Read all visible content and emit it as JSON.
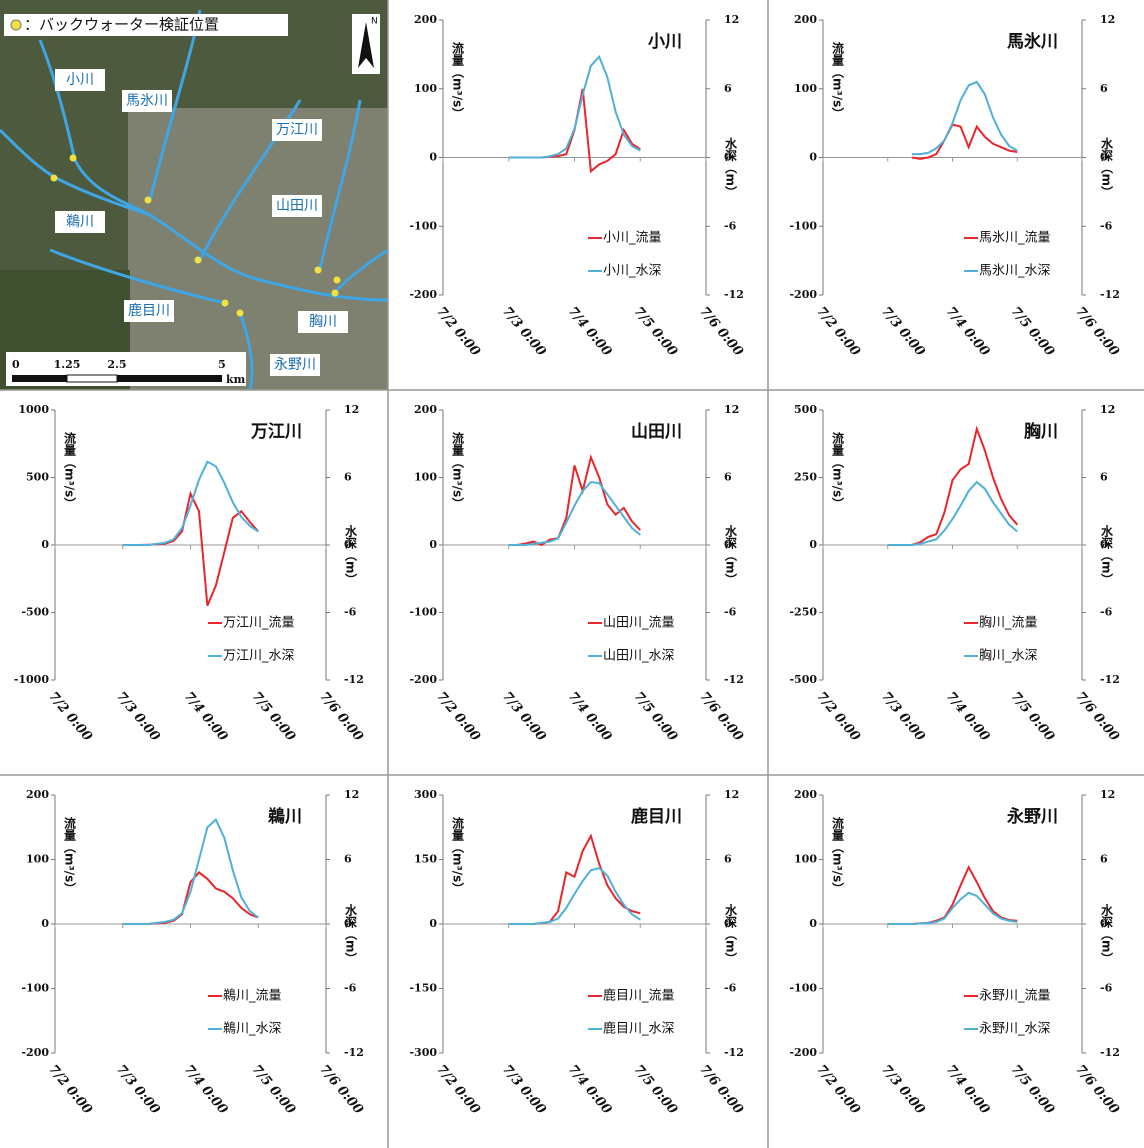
{
  "map": {
    "legend": "：バックウォーター検証位置",
    "north": "N",
    "labels": [
      "小川",
      "馬氷川",
      "万江川",
      "山田川",
      "鵜川",
      "鹿目川",
      "胸川",
      "永野川"
    ],
    "scale_ticks": [
      "0",
      "1.25",
      "2.5",
      "5"
    ],
    "scale_unit": "km"
  },
  "chart_data": [
    {
      "type": "line",
      "title": "小川",
      "ylabel": "流量（m³/s）",
      "y2label": "水深（m）",
      "legend": "lower right",
      "xlim": [
        "7/2 0:00",
        "7/6 0:00"
      ],
      "xticks": [
        "7/2 0:00",
        "7/3 0:00",
        "7/4 0:00",
        "7/5 0:00",
        "7/6 0:00"
      ],
      "ylim": [
        -200,
        200
      ],
      "yticks": [
        -200,
        -100,
        0,
        100,
        200
      ],
      "y2lim": [
        -12,
        12
      ],
      "y2ticks": [
        -12,
        -6,
        0,
        6,
        12
      ],
      "x": [
        "7/3 0:00",
        "7/3 3:00",
        "7/3 6:00",
        "7/3 9:00",
        "7/3 12:00",
        "7/3 15:00",
        "7/3 18:00",
        "7/3 21:00",
        "7/4 0:00",
        "7/4 3:00",
        "7/4 6:00",
        "7/4 9:00",
        "7/4 12:00",
        "7/4 15:00",
        "7/4 18:00",
        "7/4 21:00",
        "7/5 0:00"
      ],
      "series": [
        {
          "name": "小川_流量",
          "color": "#e8262b",
          "values": [
            0,
            0,
            0,
            0,
            0,
            1,
            2,
            5,
            40,
            100,
            -20,
            -10,
            -5,
            5,
            40,
            20,
            12
          ]
        },
        {
          "name": "小川_水深",
          "color": "#4fb0d8",
          "axis": "y2",
          "values": [
            0,
            0,
            0,
            0,
            0,
            0.1,
            0.3,
            0.8,
            2.5,
            5.5,
            8,
            8.8,
            7,
            4,
            2,
            1,
            0.6
          ]
        }
      ]
    },
    {
      "type": "line",
      "title": "馬氷川",
      "ylabel": "流量（m³/s）",
      "y2label": "水深（m）",
      "legend": "lower right",
      "xlim": [
        "7/2 0:00",
        "7/6 0:00"
      ],
      "xticks": [
        "7/2 0:00",
        "7/3 0:00",
        "7/4 0:00",
        "7/5 0:00",
        "7/6 0:00"
      ],
      "ylim": [
        -200,
        200
      ],
      "yticks": [
        -200,
        -100,
        0,
        100,
        200
      ],
      "y2lim": [
        -12,
        12
      ],
      "y2ticks": [
        -12,
        -6,
        0,
        6,
        12
      ],
      "x": [
        "7/3 0:00",
        "7/3 3:00",
        "7/3 6:00",
        "7/3 9:00",
        "7/3 12:00",
        "7/3 15:00",
        "7/3 18:00",
        "7/3 21:00",
        "7/4 0:00",
        "7/4 3:00",
        "7/4 6:00",
        "7/4 9:00",
        "7/4 12:00",
        "7/4 15:00",
        "7/4 18:00",
        "7/4 21:00",
        "7/5 0:00"
      ],
      "series": [
        {
          "name": "馬氷川_流量",
          "color": "#e8262b",
          "values": [
            null,
            null,
            null,
            0,
            -2,
            0,
            5,
            25,
            48,
            45,
            15,
            45,
            30,
            20,
            15,
            10,
            8
          ]
        },
        {
          "name": "馬氷川_水深",
          "color": "#4fb0d8",
          "axis": "y2",
          "values": [
            null,
            null,
            null,
            0.3,
            0.3,
            0.4,
            0.8,
            1.5,
            3,
            5,
            6.3,
            6.6,
            5.5,
            3.5,
            2,
            1,
            0.6
          ]
        }
      ]
    },
    {
      "type": "line",
      "title": "万江川",
      "ylabel": "流量（m³/s）",
      "y2label": "水深（m）",
      "legend": "lower right",
      "xlim": [
        "7/2 0:00",
        "7/6 0:00"
      ],
      "xticks": [
        "7/2 0:00",
        "7/3 0:00",
        "7/4 0:00",
        "7/5 0:00",
        "7/6 0:00"
      ],
      "ylim": [
        -1000,
        1000
      ],
      "yticks": [
        -1000,
        -500,
        0,
        500,
        1000
      ],
      "y2lim": [
        -12,
        12
      ],
      "y2ticks": [
        -12,
        -6,
        0,
        6,
        12
      ],
      "x": [
        "7/3 0:00",
        "7/3 3:00",
        "7/3 6:00",
        "7/3 9:00",
        "7/3 12:00",
        "7/3 15:00",
        "7/3 18:00",
        "7/3 21:00",
        "7/4 0:00",
        "7/4 3:00",
        "7/4 6:00",
        "7/4 9:00",
        "7/4 12:00",
        "7/4 15:00",
        "7/4 18:00",
        "7/4 21:00",
        "7/5 0:00"
      ],
      "series": [
        {
          "name": "万江川_流量",
          "color": "#e8262b",
          "values": [
            0,
            0,
            0,
            2,
            5,
            10,
            30,
            100,
            380,
            250,
            -450,
            -300,
            -50,
            200,
            250,
            170,
            100
          ]
        },
        {
          "name": "万江川_水深",
          "color": "#4fb0d8",
          "axis": "y2",
          "values": [
            0,
            0,
            0,
            0,
            0.1,
            0.2,
            0.5,
            1.5,
            3.5,
            5.8,
            7.4,
            7,
            5.5,
            3.8,
            2.5,
            1.7,
            1.2
          ]
        }
      ]
    },
    {
      "type": "line",
      "title": "山田川",
      "ylabel": "流量（m³/s）",
      "y2label": "水深（m）",
      "legend": "lower right",
      "xlim": [
        "7/2 0:00",
        "7/6 0:00"
      ],
      "xticks": [
        "7/2 0:00",
        "7/3 0:00",
        "7/4 0:00",
        "7/5 0:00",
        "7/6 0:00"
      ],
      "ylim": [
        -200,
        200
      ],
      "yticks": [
        -200,
        -100,
        0,
        100,
        200
      ],
      "y2lim": [
        -12,
        12
      ],
      "y2ticks": [
        -12,
        -6,
        0,
        6,
        12
      ],
      "x": [
        "7/3 0:00",
        "7/3 3:00",
        "7/3 6:00",
        "7/3 9:00",
        "7/3 12:00",
        "7/3 15:00",
        "7/3 18:00",
        "7/3 21:00",
        "7/4 0:00",
        "7/4 3:00",
        "7/4 6:00",
        "7/4 9:00",
        "7/4 12:00",
        "7/4 15:00",
        "7/4 18:00",
        "7/4 21:00",
        "7/5 0:00"
      ],
      "series": [
        {
          "name": "山田川_流量",
          "color": "#e8262b",
          "values": [
            0,
            0,
            2,
            5,
            0,
            8,
            10,
            40,
            118,
            80,
            130,
            100,
            60,
            45,
            55,
            35,
            22
          ]
        },
        {
          "name": "山田川_水深",
          "color": "#4fb0d8",
          "axis": "y2",
          "values": [
            0,
            0,
            0,
            0.1,
            0.2,
            0.3,
            0.6,
            2,
            3.5,
            4.8,
            5.6,
            5.5,
            4.5,
            3.5,
            2.5,
            1.5,
            0.9
          ]
        }
      ]
    },
    {
      "type": "line",
      "title": "胸川",
      "ylabel": "流量（m³/s）",
      "y2label": "水深（m）",
      "legend": "lower right",
      "xlim": [
        "7/2 0:00",
        "7/6 0:00"
      ],
      "xticks": [
        "7/2 0:00",
        "7/3 0:00",
        "7/4 0:00",
        "7/5 0:00",
        "7/6 0:00"
      ],
      "ylim": [
        -500,
        500
      ],
      "yticks": [
        -500,
        -250,
        0,
        250,
        500
      ],
      "y2lim": [
        -12,
        12
      ],
      "y2ticks": [
        -12,
        -6,
        0,
        6,
        12
      ],
      "x": [
        "7/3 0:00",
        "7/3 3:00",
        "7/3 6:00",
        "7/3 9:00",
        "7/3 12:00",
        "7/3 15:00",
        "7/3 18:00",
        "7/3 21:00",
        "7/4 0:00",
        "7/4 3:00",
        "7/4 6:00",
        "7/4 9:00",
        "7/4 12:00",
        "7/4 15:00",
        "7/4 18:00",
        "7/4 21:00",
        "7/5 0:00"
      ],
      "series": [
        {
          "name": "胸川_流量",
          "color": "#e8262b",
          "values": [
            0,
            0,
            0,
            0,
            10,
            30,
            40,
            120,
            240,
            280,
            300,
            430,
            350,
            250,
            170,
            110,
            75
          ]
        },
        {
          "name": "胸川_水深",
          "color": "#4fb0d8",
          "axis": "y2",
          "values": [
            0,
            0,
            0,
            0,
            0.1,
            0.3,
            0.5,
            1.3,
            2.3,
            3.5,
            4.8,
            5.6,
            5,
            3.8,
            2.8,
            1.8,
            1.2
          ]
        }
      ]
    },
    {
      "type": "line",
      "title": "鵜川",
      "ylabel": "流量（m³/s）",
      "y2label": "水深（m）",
      "legend": "lower right",
      "xlim": [
        "7/2 0:00",
        "7/6 0:00"
      ],
      "xticks": [
        "7/2 0:00",
        "7/3 0:00",
        "7/4 0:00",
        "7/5 0:00",
        "7/6 0:00"
      ],
      "ylim": [
        -200,
        200
      ],
      "yticks": [
        -200,
        -100,
        0,
        100,
        200
      ],
      "y2lim": [
        -12,
        12
      ],
      "y2ticks": [
        -12,
        -6,
        0,
        6,
        12
      ],
      "x": [
        "7/3 0:00",
        "7/3 3:00",
        "7/3 6:00",
        "7/3 9:00",
        "7/3 12:00",
        "7/3 15:00",
        "7/3 18:00",
        "7/3 21:00",
        "7/4 0:00",
        "7/4 3:00",
        "7/4 6:00",
        "7/4 9:00",
        "7/4 12:00",
        "7/4 15:00",
        "7/4 18:00",
        "7/4 21:00",
        "7/5 0:00"
      ],
      "series": [
        {
          "name": "鵜川_流量",
          "color": "#e8262b",
          "values": [
            0,
            0,
            0,
            0,
            1,
            2,
            5,
            15,
            65,
            80,
            70,
            55,
            50,
            40,
            25,
            15,
            10
          ]
        },
        {
          "name": "鵜川_水深",
          "color": "#4fb0d8",
          "axis": "y2",
          "values": [
            0,
            0,
            0,
            0,
            0.1,
            0.2,
            0.4,
            1,
            3,
            6,
            9,
            9.7,
            8,
            5,
            2.5,
            1.2,
            0.6
          ]
        }
      ]
    },
    {
      "type": "line",
      "title": "鹿目川",
      "ylabel": "流量（m³/s）",
      "y2label": "水深（m）",
      "legend": "lower right",
      "xlim": [
        "7/2 0:00",
        "7/6 0:00"
      ],
      "xticks": [
        "7/2 0:00",
        "7/3 0:00",
        "7/4 0:00",
        "7/5 0:00",
        "7/6 0:00"
      ],
      "ylim": [
        -300,
        300
      ],
      "yticks": [
        -300,
        -150,
        0,
        150,
        300
      ],
      "y2lim": [
        -12,
        12
      ],
      "y2ticks": [
        -12,
        -6,
        0,
        6,
        12
      ],
      "x": [
        "7/3 0:00",
        "7/3 3:00",
        "7/3 6:00",
        "7/3 9:00",
        "7/3 12:00",
        "7/3 15:00",
        "7/3 18:00",
        "7/3 21:00",
        "7/4 0:00",
        "7/4 3:00",
        "7/4 6:00",
        "7/4 9:00",
        "7/4 12:00",
        "7/4 15:00",
        "7/4 18:00",
        "7/4 21:00",
        "7/5 0:00"
      ],
      "series": [
        {
          "name": "鹿目川_流量",
          "color": "#e8262b",
          "values": [
            0,
            0,
            0,
            0,
            2,
            5,
            30,
            120,
            110,
            170,
            205,
            140,
            90,
            60,
            40,
            30,
            25
          ]
        },
        {
          "name": "鹿目川_水深",
          "color": "#4fb0d8",
          "axis": "y2",
          "values": [
            0,
            0,
            0,
            0,
            0.1,
            0.2,
            0.5,
            1.5,
            2.8,
            4,
            5,
            5.2,
            4.5,
            3,
            1.8,
            0.9,
            0.4
          ]
        }
      ]
    },
    {
      "type": "line",
      "title": "永野川",
      "ylabel": "流量（m³/s）",
      "y2label": "水深（m）",
      "legend": "lower right",
      "xlim": [
        "7/2 0:00",
        "7/6 0:00"
      ],
      "xticks": [
        "7/2 0:00",
        "7/3 0:00",
        "7/4 0:00",
        "7/5 0:00",
        "7/6 0:00"
      ],
      "ylim": [
        -200,
        200
      ],
      "yticks": [
        -200,
        -100,
        0,
        100,
        200
      ],
      "y2lim": [
        -12,
        12
      ],
      "y2ticks": [
        -12,
        -6,
        0,
        6,
        12
      ],
      "x": [
        "7/3 0:00",
        "7/3 3:00",
        "7/3 6:00",
        "7/3 9:00",
        "7/3 12:00",
        "7/3 15:00",
        "7/3 18:00",
        "7/3 21:00",
        "7/4 0:00",
        "7/4 3:00",
        "7/4 6:00",
        "7/4 9:00",
        "7/4 12:00",
        "7/4 15:00",
        "7/4 18:00",
        "7/4 21:00",
        "7/5 0:00"
      ],
      "series": [
        {
          "name": "永野川_流量",
          "color": "#e8262b",
          "values": [
            0,
            0,
            0,
            0,
            1,
            2,
            5,
            10,
            30,
            60,
            88,
            65,
            40,
            20,
            10,
            6,
            5
          ]
        },
        {
          "name": "永野川_水深",
          "color": "#4fb0d8",
          "axis": "y2",
          "values": [
            0,
            0,
            0,
            0,
            0.05,
            0.1,
            0.2,
            0.5,
            1.5,
            2.3,
            2.9,
            2.6,
            1.8,
            1,
            0.5,
            0.3,
            0.2
          ]
        }
      ]
    }
  ]
}
